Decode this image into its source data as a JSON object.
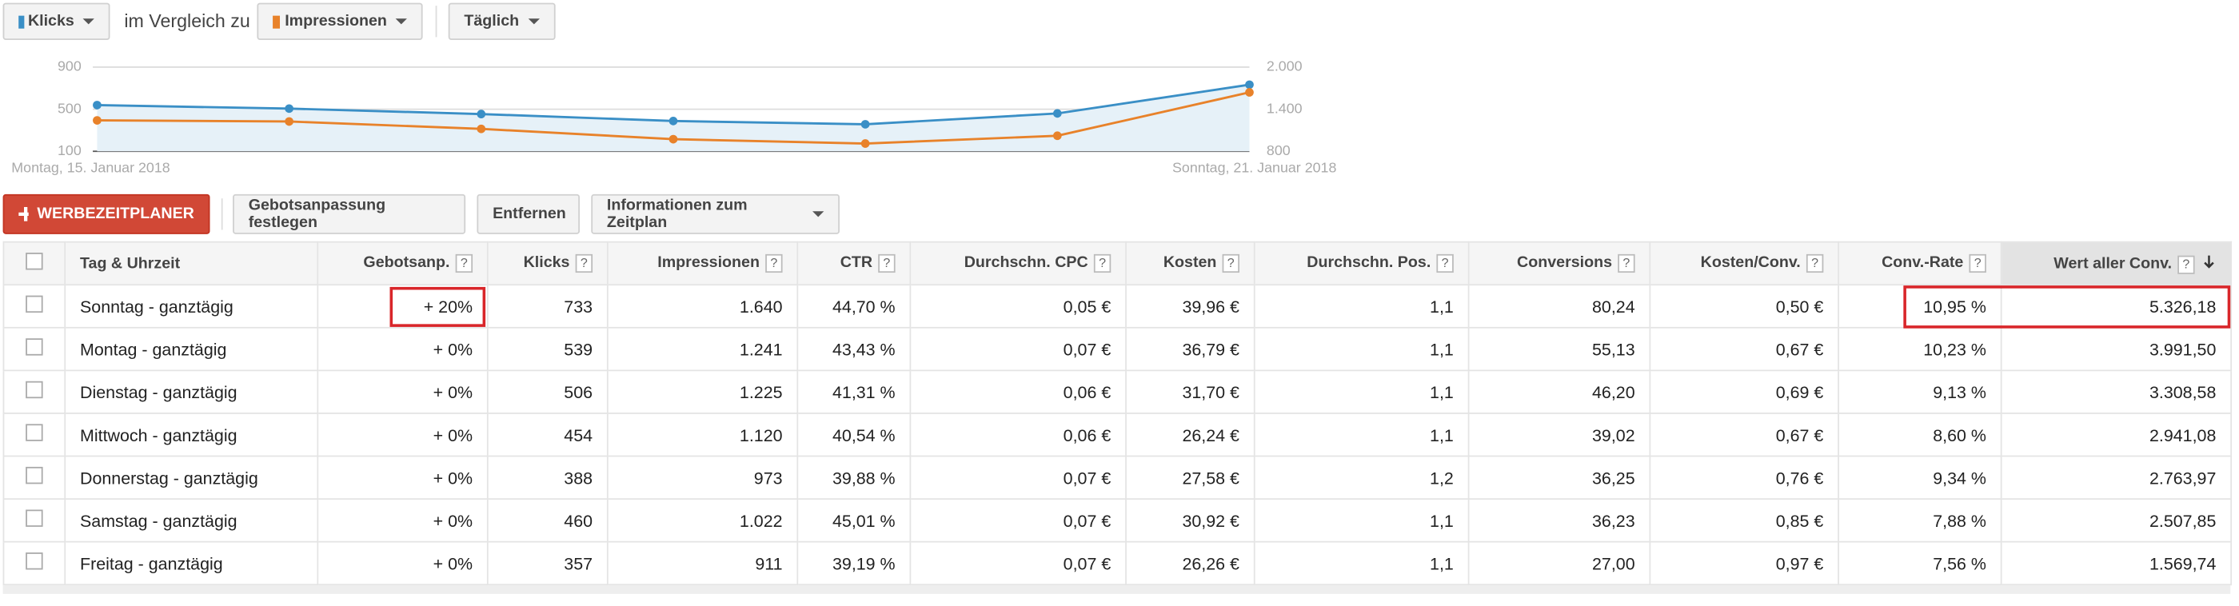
{
  "toolbar": {
    "compare": "im Vergleich zu",
    "period": "Täglich"
  },
  "chart_data": {
    "type": "line",
    "categories": [
      "Montag, 15. Januar 2018",
      null,
      null,
      null,
      null,
      null,
      "Sonntag, 21. Januar 2018"
    ],
    "series": [
      {
        "name": "Klicks",
        "color": "#3a8fc6",
        "values": [
          539,
          506,
          454,
          388,
          357,
          460,
          733
        ]
      },
      {
        "name": "Impressionen",
        "color": "#e8822a",
        "values": [
          1241,
          1225,
          1120,
          973,
          911,
          1022,
          1640
        ],
        "axis": "y2"
      }
    ],
    "ylim": [
      100,
      900
    ],
    "yticks": [
      100,
      500,
      900
    ],
    "y2lim": [
      800,
      2000
    ],
    "y2ticks": [
      800,
      {
        "value": 1400,
        "label": "1.400"
      },
      {
        "value": 2000,
        "label": "2.000"
      }
    ],
    "grid": true
  },
  "actions": {
    "schedule": "WERBEZEITPLANER",
    "set_bid": "Gebotsanpassung festlegen",
    "remove": "Entfernen",
    "info": "Informationen zum Zeitplan"
  },
  "table": {
    "help": "?",
    "columns": [
      "Tag & Uhrzeit",
      "Gebotsanp.",
      "Klicks",
      "Impressionen",
      "CTR",
      "Durchschn. CPC",
      "Kosten",
      "Durchschn. Pos.",
      "Conversions",
      "Kosten/Conv.",
      "Conv.-Rate",
      "Wert aller Conv."
    ],
    "rows": [
      [
        "Sonntag - ganztägig",
        "+ 20%",
        "733",
        "1.640",
        "44,70 %",
        "0,05 €",
        "39,96 €",
        "1,1",
        "80,24",
        "0,50 €",
        "10,95 %",
        "5.326,18"
      ],
      [
        "Montag - ganztägig",
        "+ 0%",
        "539",
        "1.241",
        "43,43 %",
        "0,07 €",
        "36,79 €",
        "1,1",
        "55,13",
        "0,67 €",
        "10,23 %",
        "3.991,50"
      ],
      [
        "Dienstag - ganztägig",
        "+ 0%",
        "506",
        "1.225",
        "41,31 %",
        "0,06 €",
        "31,70 €",
        "1,1",
        "46,20",
        "0,69 €",
        "9,13 %",
        "3.308,58"
      ],
      [
        "Mittwoch - ganztägig",
        "+ 0%",
        "454",
        "1.120",
        "40,54 %",
        "0,06 €",
        "26,24 €",
        "1,1",
        "39,02",
        "0,67 €",
        "8,60 %",
        "2.941,08"
      ],
      [
        "Donnerstag - ganztägig",
        "+ 0%",
        "388",
        "973",
        "39,88 %",
        "0,07 €",
        "27,58 €",
        "1,2",
        "36,25",
        "0,76 €",
        "9,34 %",
        "2.763,97"
      ],
      [
        "Samstag - ganztägig",
        "+ 0%",
        "460",
        "1.022",
        "45,01 %",
        "0,07 €",
        "30,92 €",
        "1,1",
        "36,23",
        "0,85 €",
        "7,88 %",
        "2.507,85"
      ],
      [
        "Freitag - ganztägig",
        "+ 0%",
        "357",
        "911",
        "39,19 %",
        "0,07 €",
        "26,26 €",
        "1,1",
        "27,00",
        "0,97 €",
        "7,56 %",
        "1.569,74"
      ]
    ]
  }
}
